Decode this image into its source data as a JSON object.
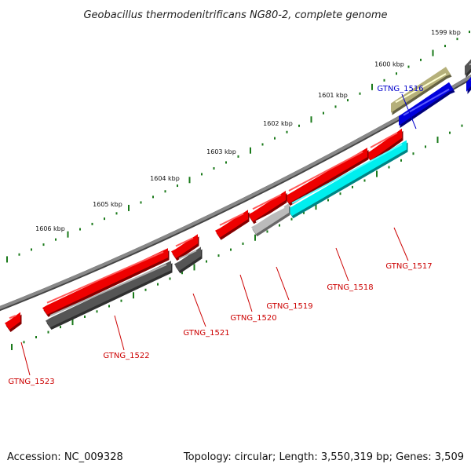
{
  "title": "Geobacillus thermodenitrificans NG80-2, complete genome",
  "footer": {
    "accession": "Accession: NC_009328",
    "summary": "Topology: circular; Length: 3,550,319 bp; Genes: 3,509"
  },
  "colors": {
    "backbone": "#888888",
    "ticks": "#1a7a1a",
    "label_red": "#cc0000",
    "label_blue": "#0000cc"
  },
  "kbp_labels": [
    "1606 kbp",
    "1605 kbp",
    "1604 kbp",
    "1603 kbp",
    "1602 kbp",
    "1601 kbp",
    "1600 kbp",
    "1599 kbp"
  ],
  "genes": [
    {
      "id": "GTNG_1516",
      "color": "#0000dd"
    },
    {
      "id": "GTNG_1517",
      "color": "#ee0000"
    },
    {
      "id": "GTNG_1518",
      "color": "#00eeee"
    },
    {
      "id": "GTNG_1519",
      "color": "#bbbbbb"
    },
    {
      "id": "GTNG_1520",
      "color": "#ee0000"
    },
    {
      "id": "GTNG_1521",
      "color": "#555555"
    },
    {
      "id": "GTNG_1522",
      "color": "#555555"
    },
    {
      "id": "GTNG_1523",
      "color": "#ee0000"
    }
  ]
}
